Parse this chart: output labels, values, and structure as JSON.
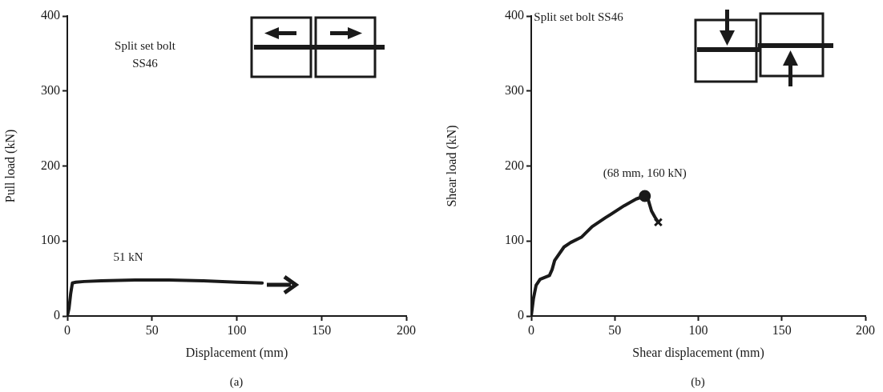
{
  "chart_data": [
    {
      "type": "line",
      "xlabel": "Displacement (mm)",
      "ylabel": "Pull load (kN)",
      "xlim": [
        0,
        200
      ],
      "xticks": [
        0,
        50,
        100,
        150,
        200
      ],
      "ylim": [
        0,
        400
      ],
      "yticks": [
        0,
        100,
        200,
        300,
        400
      ],
      "grid": false,
      "legend": false,
      "marker": "none",
      "line_style": "solid",
      "annotations": [
        "Split set bolt\nSS46",
        "51 kN",
        "(a)"
      ],
      "series": [
        {
          "color": "#1a1a1a",
          "x": [
            0,
            1,
            2,
            3,
            5,
            10,
            20,
            40,
            60,
            80,
            100,
            115
          ],
          "values": [
            0,
            10,
            30,
            44,
            45,
            46,
            47,
            48,
            48,
            47,
            45,
            44
          ]
        }
      ]
    },
    {
      "type": "line",
      "xlabel": "Shear displacement (mm)",
      "ylabel": "Shear load (kN)",
      "xlim": [
        0,
        200
      ],
      "xticks": [
        0,
        50,
        100,
        150,
        200
      ],
      "ylim": [
        0,
        400
      ],
      "yticks": [
        0,
        100,
        200,
        300,
        400
      ],
      "grid": false,
      "legend": false,
      "marker": "none",
      "line_style": "solid",
      "annotations": [
        "Split set bolt SS46",
        {
          "text": "(68 mm, 160 kN)",
          "x": 68,
          "y": 160
        },
        "(b)"
      ],
      "series": [
        {
          "color": "#1a1a1a",
          "x": [
            0,
            1.3,
            2.9,
            5.3,
            10.9,
            12.5,
            14,
            19.6,
            23.6,
            30,
            36.4,
            44.4,
            55.6,
            62.8,
            68,
            70,
            72,
            74,
            76
          ],
          "values": [
            0,
            23,
            41,
            49,
            54,
            62,
            74,
            92,
            98,
            105,
            119,
            131,
            147,
            156,
            160,
            155,
            140,
            132,
            125
          ]
        },
        {
          "type": "scatter",
          "color": "#1a1a1a",
          "marker": "circle",
          "x": [
            68
          ],
          "values": [
            160
          ]
        },
        {
          "type": "scatter",
          "color": "#1a1a1a",
          "marker": "cross",
          "x": [
            76
          ],
          "values": [
            125
          ]
        }
      ]
    }
  ]
}
